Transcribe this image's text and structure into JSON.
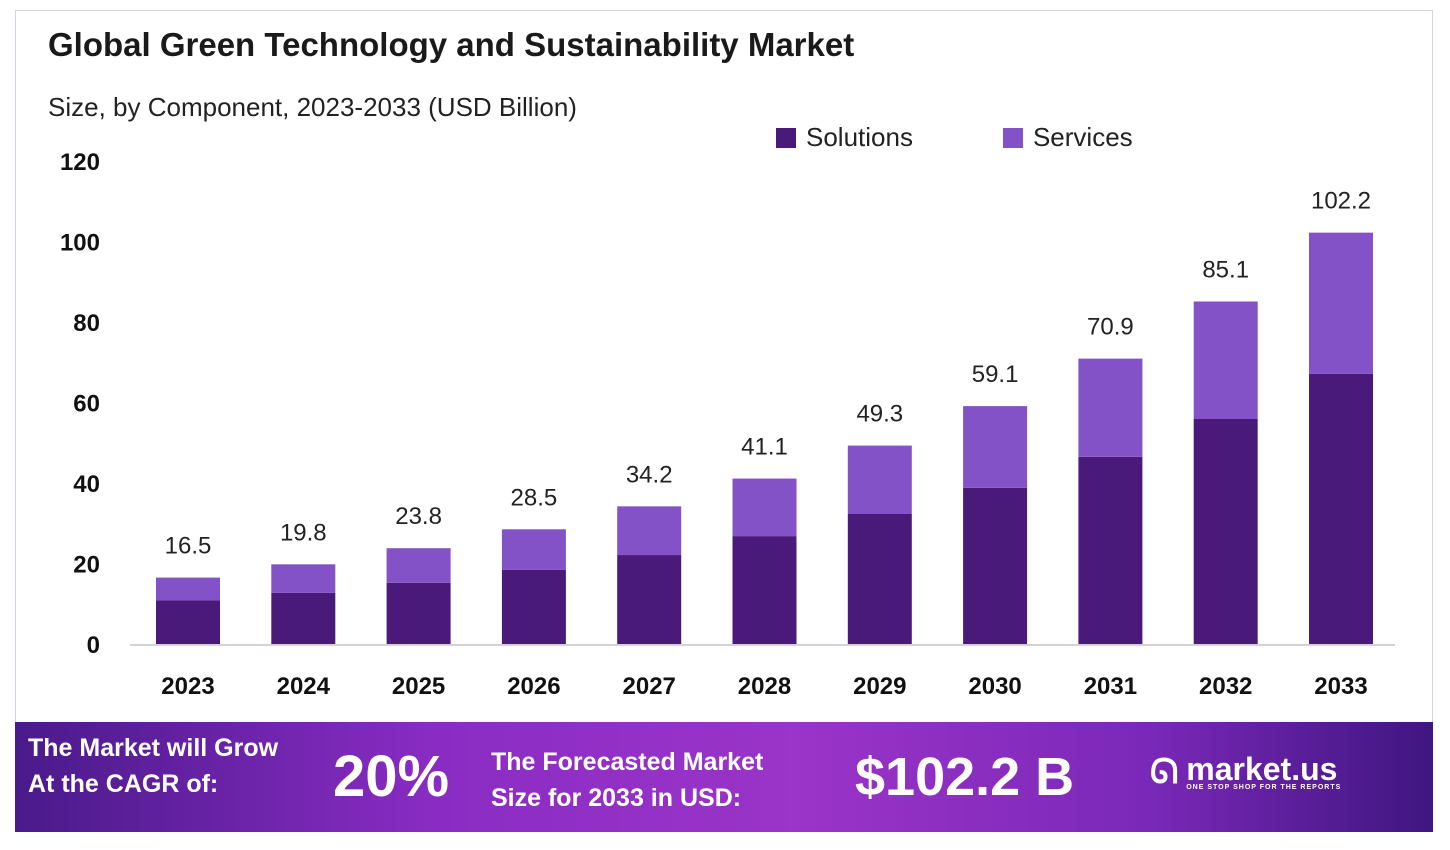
{
  "chart_data": {
    "type": "bar",
    "stacked": true,
    "title": "Global Green Technology and Sustainability Market",
    "subtitle": "Size, by Component, 2023-2033 (USD Billion)",
    "categories": [
      "2023",
      "2024",
      "2025",
      "2026",
      "2027",
      "2028",
      "2029",
      "2030",
      "2031",
      "2032",
      "2033"
    ],
    "series": [
      {
        "name": "Solutions",
        "color": "#4a1a7a",
        "values": [
          10.8,
          12.7,
          15.2,
          18.4,
          22.1,
          26.8,
          32.3,
          38.8,
          46.5,
          55.9,
          67.1
        ]
      },
      {
        "name": "Services",
        "color": "#8352c6",
        "values": [
          5.7,
          7.1,
          8.6,
          10.1,
          12.1,
          14.3,
          17.0,
          20.3,
          24.4,
          29.2,
          35.1
        ]
      }
    ],
    "totals": [
      "16.5",
      "19.8",
      "23.8",
      "28.5",
      "34.2",
      "41.1",
      "49.3",
      "59.1",
      "70.9",
      "85.1",
      "102.2"
    ],
    "yticks": [
      "0",
      "20",
      "40",
      "60",
      "80",
      "100",
      "120"
    ],
    "ylim": [
      0,
      120
    ],
    "grid": false,
    "legend": "top-right"
  },
  "banner": {
    "cagr_label_1": "The Market will Grow",
    "cagr_label_2": "At the CAGR of:",
    "cagr_value": "20%",
    "forecast_label_1": "The Forecasted Market",
    "forecast_label_2": "Size for 2033 in USD:",
    "forecast_value": "$102.2 B",
    "logo_text": "market.us",
    "logo_tagline": "ONE STOP SHOP FOR THE REPORTS"
  }
}
